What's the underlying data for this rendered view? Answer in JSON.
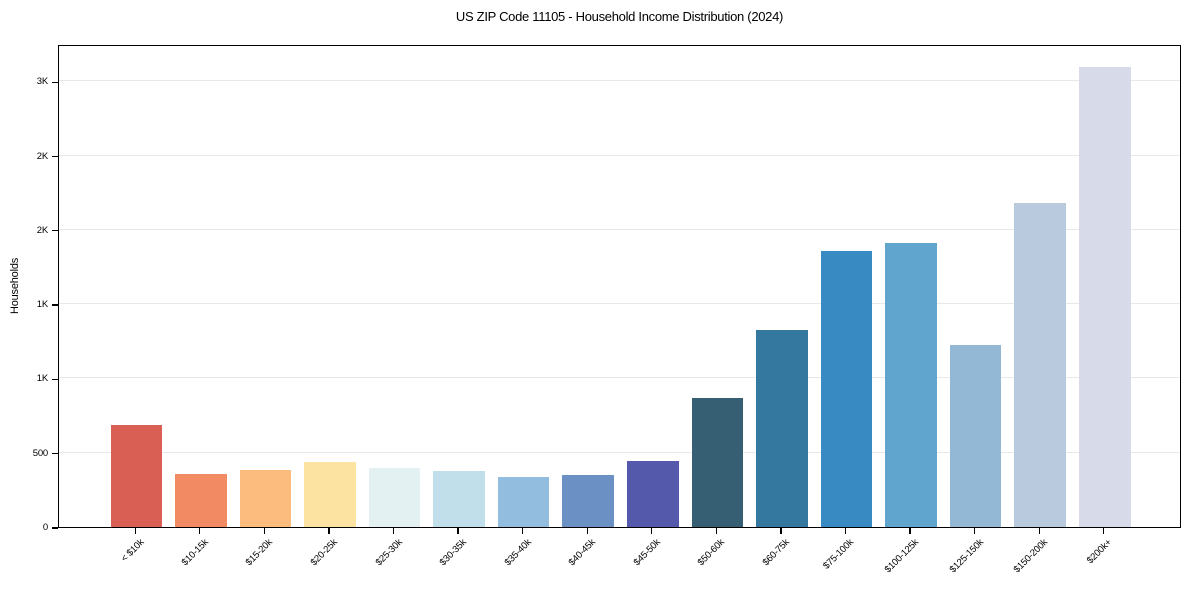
{
  "chart_data": {
    "type": "bar",
    "title": "US ZIP Code 11105 - Household Income Distribution (2024)",
    "xlabel": "",
    "ylabel": "Households",
    "categories": [
      "< $10k",
      "$10-15k",
      "$15-20k",
      "$20-25k",
      "$25-30k",
      "$30-35k",
      "$35-40k",
      "$40-45k",
      "$45-50k",
      "$50-60k",
      "$60-75k",
      "$75-100k",
      "$100-125k",
      "$125-150k",
      "$150-200k",
      "$200k+"
    ],
    "values": [
      685,
      360,
      385,
      435,
      395,
      375,
      335,
      350,
      445,
      870,
      1325,
      1860,
      1910,
      1225,
      2180,
      3095
    ],
    "bar_colors": [
      "#d95f55",
      "#f28a63",
      "#fbbc7d",
      "#fde3a1",
      "#e4f1f3",
      "#c0dfeb",
      "#93bddf",
      "#6b91c4",
      "#5559ab",
      "#365f74",
      "#35789f",
      "#388bc2",
      "#60a5cd",
      "#92b8d6",
      "#b9c9de",
      "#d7dae8"
    ],
    "ylim": [
      0,
      3250
    ],
    "yticks": {
      "values": [
        0,
        500,
        1000,
        1500,
        2000,
        2500,
        3000
      ],
      "labels": [
        "0",
        "500",
        "1K",
        "1K",
        "2K",
        "2K",
        "3K"
      ]
    },
    "grid": true,
    "gridline_color": "#e8e8ec",
    "legend": "none",
    "bar_relative_width": 0.8
  }
}
